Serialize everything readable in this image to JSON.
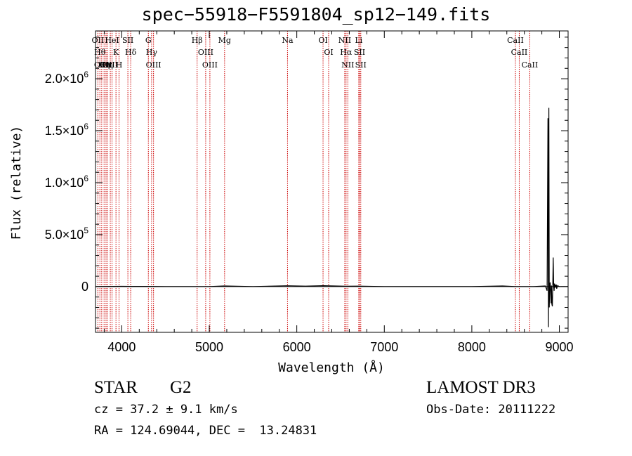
{
  "chart_data": {
    "type": "line",
    "title": "spec−55918−F5591804_sp12−149.fits",
    "xlabel": "Wavelength (Å)",
    "ylabel": "Flux (relative)",
    "xlim": [
      3700,
      9100
    ],
    "ylim": [
      -440000,
      2460000
    ],
    "x_ticks": [
      {
        "value": 4000,
        "label": "4000"
      },
      {
        "value": 5000,
        "label": "5000"
      },
      {
        "value": 6000,
        "label": "6000"
      },
      {
        "value": 7000,
        "label": "7000"
      },
      {
        "value": 8000,
        "label": "8000"
      },
      {
        "value": 9000,
        "label": "9000"
      }
    ],
    "y_ticks": [
      {
        "value": 0,
        "mant": "0",
        "exp": ""
      },
      {
        "value": 500000,
        "mant": "5.0×10",
        "exp": "5"
      },
      {
        "value": 1000000,
        "mant": "1.0×10",
        "exp": "6"
      },
      {
        "value": 1500000,
        "mant": "1.5×10",
        "exp": "6"
      },
      {
        "value": 2000000,
        "mant": "2.0×10",
        "exp": "6"
      }
    ],
    "series": [
      {
        "x": [
          3700,
          3900,
          4000,
          4100,
          4300,
          4500,
          4800,
          5000,
          5170,
          5500,
          5890,
          6100,
          6300,
          6560,
          6700,
          7000,
          7500,
          8000,
          8350,
          8500,
          8700,
          8840,
          8860,
          8870,
          8875,
          8880,
          8885,
          8890,
          8895,
          8900,
          8905,
          8910,
          8915,
          8920,
          8925,
          8930,
          8935,
          8940,
          8945,
          8950,
          8955,
          8960,
          8965,
          8970,
          8980,
          9000,
          9100
        ],
        "y": [
          0,
          2000,
          3000,
          2000,
          2000,
          1000,
          1000,
          1000,
          6000,
          1000,
          8000,
          5000,
          9000,
          4000,
          5000,
          1000,
          0,
          0,
          6000,
          0,
          0,
          6000,
          -40000,
          1620000,
          -390000,
          1720000,
          -200000,
          10000,
          40000,
          -60000,
          -160000,
          10000,
          -170000,
          -190000,
          20000,
          280000,
          30000,
          -40000,
          30000,
          -10000,
          10000,
          0,
          20000,
          -20000,
          10000,
          0,
          0
        ]
      }
    ],
    "lines": [
      {
        "x": 3727,
        "label": "OII"
      },
      {
        "x": 3750,
        "label": "Hθ"
      },
      {
        "x": 3771,
        "label": "OIII"
      },
      {
        "x": 3798,
        "label": "Hη"
      },
      {
        "x": 3820,
        "label": "OII"
      },
      {
        "x": 3835,
        "label": "Hη"
      },
      {
        "x": 3869,
        "label": "OIII"
      },
      {
        "x": 3889,
        "label": "HeI"
      },
      {
        "x": 3934,
        "label": "K"
      },
      {
        "x": 3969,
        "label": "H"
      },
      {
        "x": 4070,
        "label": "SII"
      },
      {
        "x": 4102,
        "label": "Hδ"
      },
      {
        "x": 4304,
        "label": "G"
      },
      {
        "x": 4341,
        "label": "Hγ"
      },
      {
        "x": 4363,
        "label": "OIII"
      },
      {
        "x": 4861,
        "label": "Hβ"
      },
      {
        "x": 4959,
        "label": "OIII"
      },
      {
        "x": 5007,
        "label": "OIII"
      },
      {
        "x": 5175,
        "label": "Mg"
      },
      {
        "x": 5894,
        "label": "Na"
      },
      {
        "x": 6300,
        "label": "OI"
      },
      {
        "x": 6364,
        "label": "OI"
      },
      {
        "x": 6548,
        "label": "NII"
      },
      {
        "x": 6563,
        "label": "Hα"
      },
      {
        "x": 6583,
        "label": "NII"
      },
      {
        "x": 6708,
        "label": "Li"
      },
      {
        "x": 6717,
        "label": "SII"
      },
      {
        "x": 6731,
        "label": "SII"
      },
      {
        "x": 8498,
        "label": "CaII"
      },
      {
        "x": 8542,
        "label": "CaII"
      },
      {
        "x": 8662,
        "label": "CaII"
      }
    ],
    "line_color": "#cc0000",
    "grid": false
  },
  "info": {
    "class_label": "STAR",
    "subclass_label": "G2",
    "survey": "LAMOST DR3",
    "cz": "cz = 37.2 ± 9.1 km/s",
    "obs_date": "Obs-Date: 20111222",
    "radec": "RA = 124.69044, DEC =  13.24831"
  }
}
